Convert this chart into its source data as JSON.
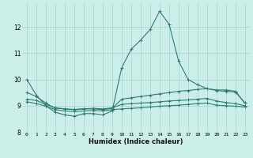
{
  "xlabel": "Humidex (Indice chaleur)",
  "ylabel": "",
  "bg_color": "#cceee8",
  "line_color": "#2e7d72",
  "grid_color": "#aad8d0",
  "xlim": [
    -0.5,
    23.5
  ],
  "ylim": [
    8.0,
    12.9
  ],
  "yticks": [
    8,
    9,
    10,
    11,
    12
  ],
  "xticks": [
    0,
    1,
    2,
    3,
    4,
    5,
    6,
    7,
    8,
    9,
    10,
    11,
    12,
    13,
    14,
    15,
    16,
    17,
    18,
    19,
    20,
    21,
    22,
    23
  ],
  "line1": [
    10.0,
    9.4,
    9.0,
    8.75,
    8.65,
    8.6,
    8.7,
    8.7,
    8.65,
    8.8,
    10.45,
    11.15,
    11.5,
    11.9,
    12.6,
    12.1,
    10.7,
    10.0,
    9.8,
    9.65,
    9.6,
    9.6,
    9.55,
    9.1
  ],
  "line2": [
    9.5,
    9.35,
    9.1,
    8.9,
    8.88,
    8.85,
    8.88,
    8.88,
    8.85,
    8.9,
    9.25,
    9.3,
    9.35,
    9.4,
    9.45,
    9.5,
    9.55,
    9.58,
    9.62,
    9.65,
    9.58,
    9.55,
    9.52,
    9.1
  ],
  "line3": [
    9.25,
    9.2,
    9.05,
    8.92,
    8.88,
    8.86,
    8.88,
    8.9,
    8.88,
    8.92,
    9.05,
    9.08,
    9.1,
    9.12,
    9.15,
    9.18,
    9.2,
    9.22,
    9.25,
    9.28,
    9.18,
    9.12,
    9.08,
    9.0
  ],
  "line4": [
    9.15,
    9.08,
    8.98,
    8.85,
    8.8,
    8.78,
    8.8,
    8.82,
    8.8,
    8.85,
    8.88,
    8.9,
    8.92,
    8.95,
    8.98,
    9.0,
    9.02,
    9.05,
    9.08,
    9.1,
    9.02,
    9.0,
    8.98,
    8.95
  ]
}
